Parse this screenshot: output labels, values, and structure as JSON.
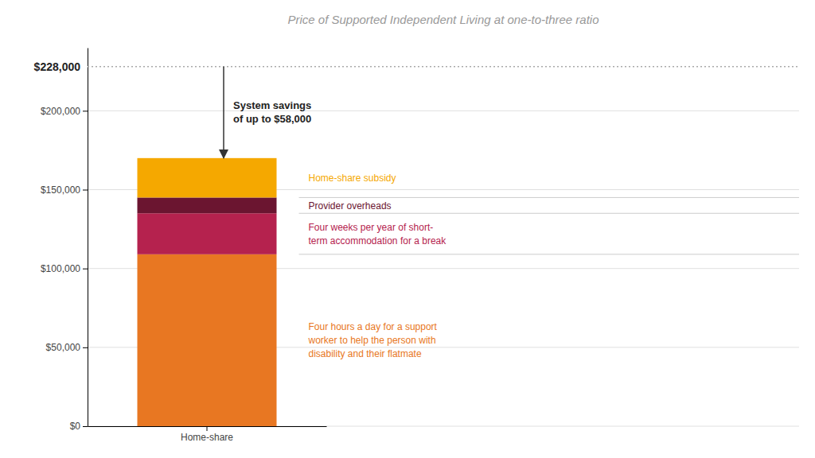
{
  "chart_data": {
    "type": "bar",
    "stacked": true,
    "title": "Price of Supported Independent Living at one-to-three ratio",
    "categories": [
      "Home-share"
    ],
    "series": [
      {
        "name": "Four hours a day for a support\nworker to help the person with\ndisability and their flatmate",
        "color": "#E87722",
        "values": [
          109000
        ]
      },
      {
        "name": "Four weeks per year of short-\nterm accommodation for a break",
        "color": "#B5224E",
        "values": [
          26000
        ]
      },
      {
        "name": "Provider overheads",
        "color": "#6B1530",
        "values": [
          10000
        ]
      },
      {
        "name": "Home-share subsidy",
        "color": "#F5A800",
        "values": [
          25000
        ]
      }
    ],
    "ylim": [
      0,
      240000
    ],
    "yticks": [
      {
        "value": 0,
        "label": "$0"
      },
      {
        "value": 50000,
        "label": "$50,000"
      },
      {
        "value": 100000,
        "label": "$100,000"
      },
      {
        "value": 150000,
        "label": "$150,000"
      },
      {
        "value": 200000,
        "label": "$200,000"
      }
    ],
    "grid": true,
    "reference_line": {
      "value": 228000,
      "label": "$228,000"
    },
    "annotations": [
      {
        "text": "System savings\nof up to $58,000",
        "y_from": 228000,
        "y_to": 170000
      }
    ]
  }
}
